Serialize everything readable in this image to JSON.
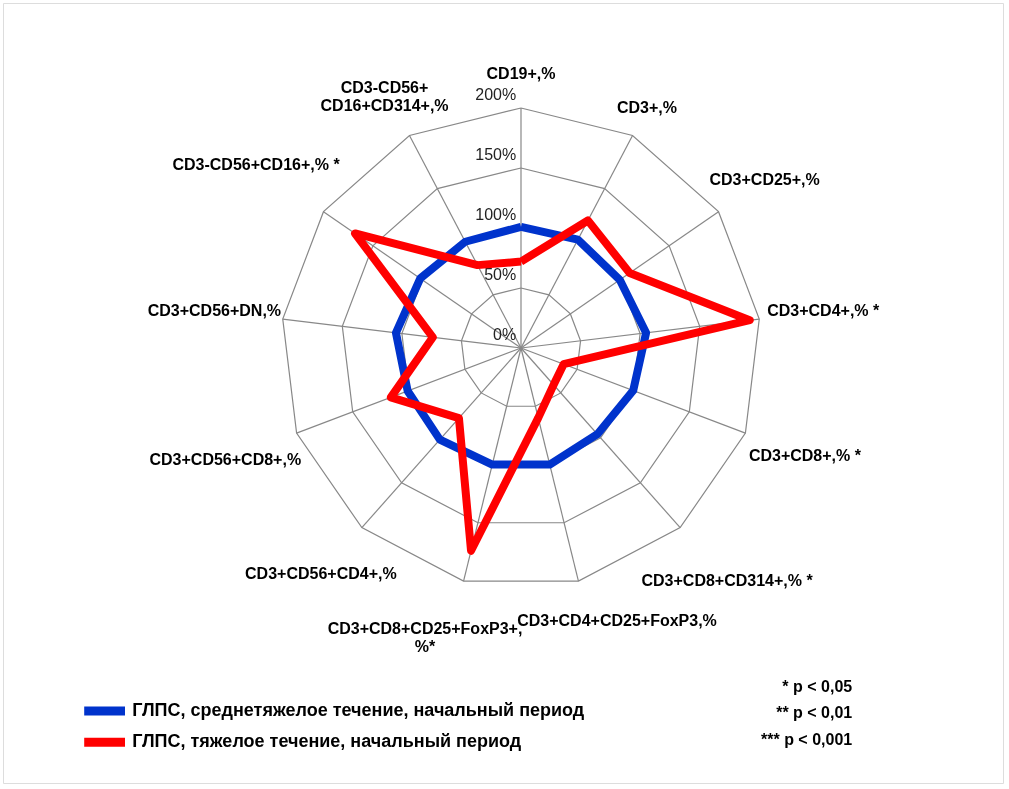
{
  "chart_data": {
    "type": "radar",
    "categories": [
      "CD19+,%",
      "CD3+,%",
      "CD3+CD25+,%",
      "CD3+CD4+,% *",
      "CD3+CD8+,% *",
      "CD3+CD8+CD314+,% *",
      "CD3+CD4+CD25+FoxP3,%",
      "CD3+CD8+CD25+FoxP3+, %*",
      "CD3+CD56+CD4+,%",
      "CD3+CD56+CD8+,%",
      "CD3+CD56+DN,%",
      "CD3-CD56+CD16+,% *",
      "CD3-CD56+ CD16+CD314+,%"
    ],
    "series": [
      {
        "name": "ГЛПС, среднетяжелое течение, начальный период",
        "color": "#0033cc",
        "values": [
          101,
          102,
          100,
          105,
          100,
          96,
          100,
          100,
          102,
          101,
          105,
          102,
          100
        ]
      },
      {
        "name": "ГЛПС, тяжелое течение, начальный период",
        "color": "#ff0000",
        "values": [
          72,
          120,
          110,
          192,
          38,
          41,
          60,
          174,
          78,
          116,
          74,
          168,
          78
        ]
      }
    ],
    "ylim": [
      0,
      200
    ],
    "yticks": [
      {
        "value": 0,
        "label": "0%"
      },
      {
        "value": 50,
        "label": "50%"
      },
      {
        "value": 100,
        "label": "100%"
      },
      {
        "value": 150,
        "label": "150%"
      },
      {
        "value": 200,
        "label": "200%"
      }
    ],
    "grid": true,
    "legend": "bottom left",
    "annotations": [
      "*  p < 0,05",
      "**  p < 0,01",
      "*** p < 0,001"
    ]
  }
}
